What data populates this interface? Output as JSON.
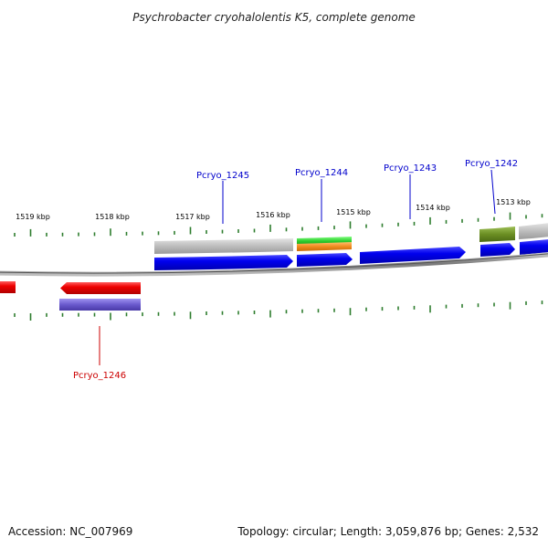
{
  "title": "Psychrobacter cryohalolentis K5, complete genome",
  "footer": {
    "accession": "Accession: NC_007969",
    "summary": "Topology: circular; Length: 3,059,876 bp; Genes: 2,532"
  },
  "scale": {
    "labels": [
      "1519 kbp",
      "1518 kbp",
      "1517 kbp",
      "1516 kbp",
      "1515 kbp",
      "1514 kbp",
      "1513 kbp"
    ]
  },
  "genes": [
    {
      "name": "Pcryo_1245",
      "strand": "forward",
      "color": "#0000ee"
    },
    {
      "name": "Pcryo_1244",
      "strand": "forward",
      "color": "#0000ee"
    },
    {
      "name": "Pcryo_1243",
      "strand": "forward",
      "color": "#0000ee"
    },
    {
      "name": "Pcryo_1242",
      "strand": "forward",
      "color": "#0000ee"
    },
    {
      "name": "Pcryo_1246",
      "strand": "reverse",
      "color": "#ee0000"
    }
  ],
  "colors": {
    "backbone": "#888888",
    "tick": "#2e7d2e",
    "forward_gene": "#0000ee",
    "reverse_gene": "#ee0000",
    "cog_gray": "#b8b8b8",
    "cog_green": "#33cc33",
    "cog_orange": "#f08a1e",
    "cog_olive": "#6b8e23",
    "cog_purple": "#6a5acd",
    "forward_label": "#0000cc",
    "reverse_label": "#cc0000"
  }
}
